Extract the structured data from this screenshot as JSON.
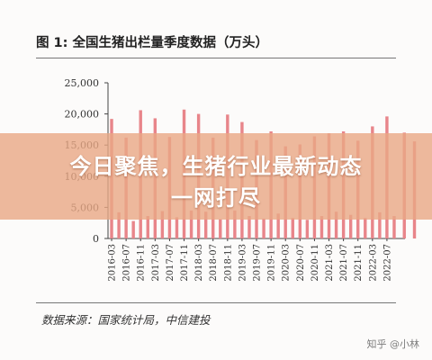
{
  "figure": {
    "title": "图 1: 全国生猪出栏量季度数据（万头）",
    "source": "数据来源：国家统计局，中信建投"
  },
  "overlay": {
    "headline_line1": "今日聚焦，生猪行业最新动态",
    "headline_line2": "一网打尽"
  },
  "watermark": "知乎 @小林",
  "colors": {
    "bar": "#e8858a",
    "axis": "#444444"
  },
  "chart_data": {
    "type": "bar",
    "title": "图 1: 全国生猪出栏量季度数据（万头）",
    "xlabel": "",
    "ylabel": "",
    "ylim": [
      0,
      25000
    ],
    "yticks": [
      0,
      5000,
      10000,
      15000,
      20000,
      25000
    ],
    "ytick_labels": [
      "0",
      "5,000",
      "10,000",
      "15,000",
      "20,000",
      "25,000"
    ],
    "categories": [
      "2016-03",
      "2016-05",
      "2016-07",
      "2016-09",
      "2016-11",
      "2017-01",
      "2017-03",
      "2017-05",
      "2017-07",
      "2017-09",
      "2017-11",
      "2018-01",
      "2018-03",
      "2018-05",
      "2018-07",
      "2018-09",
      "2018-11",
      "2019-01",
      "2019-03",
      "2019-05",
      "2019-07",
      "2019-09",
      "2019-11",
      "2020-01",
      "2020-03",
      "2020-05",
      "2020-07",
      "2020-09",
      "2020-11",
      "2021-01",
      "2021-03",
      "2021-05",
      "2021-07",
      "2021-09",
      "2021-11",
      "2022-01",
      "2022-03",
      "2022-05",
      "2022-07",
      "2022-09"
    ],
    "x_tick_labels": [
      "2016-03",
      "2016-07",
      "2016-11",
      "2017-03",
      "2017-07",
      "2017-11",
      "2018-03",
      "2018-07",
      "2018-11",
      "2019-03",
      "2019-07",
      "2019-11",
      "2020-03",
      "2020-07",
      "2020-11",
      "2021-03",
      "2021-07",
      "2021-11",
      "2022-03",
      "2022-07"
    ],
    "values": [
      19200,
      4200,
      16200,
      2800,
      20600,
      3600,
      19300,
      4400,
      16300,
      3400,
      20700,
      4500,
      20000,
      4300,
      16200,
      3100,
      19900,
      4500,
      18700,
      3600,
      15800,
      3200,
      17200,
      4000,
      14800,
      3300,
      15100,
      3000,
      16400,
      3600,
      16900,
      4300,
      17200,
      3800,
      15700,
      3300,
      18000,
      4200,
      19600,
      3600
    ],
    "extra_values_after_axis": [
      17000,
      15600
    ]
  }
}
